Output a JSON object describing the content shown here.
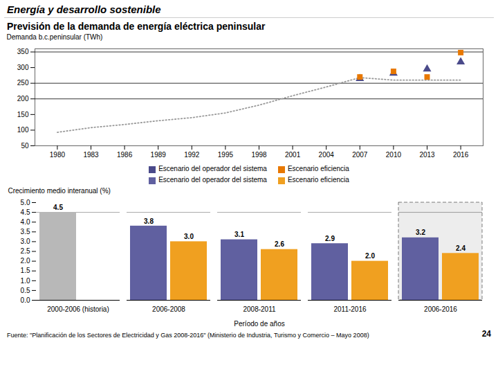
{
  "title": "Previsión de la demanda de energía eléctrica peninsular",
  "subtitle": "Energía y desarrollo sostenible",
  "annotations": [
    "Fuente: \"Planificación de los Sectores de Electricidad y Gas 2008-2016\" (Ministerio de Industria, Turismo y Comercio – Mayo 2008)",
    "24"
  ],
  "chart_data": [
    {
      "type": "scatter",
      "ylabel": "Demanda b.c.peninsular (TWh)",
      "x": [
        1980,
        1983,
        1986,
        1989,
        1992,
        1995,
        1998,
        2001,
        2004,
        2007,
        2010,
        2013,
        2016
      ],
      "xlim": [
        1978,
        2018
      ],
      "xticks": [
        1980,
        1983,
        1986,
        1989,
        1992,
        1995,
        1998,
        2001,
        2004,
        2007,
        2010,
        2013,
        2016
      ],
      "ylim": [
        50,
        360
      ],
      "yticks": [
        50,
        100,
        150,
        200,
        250,
        300,
        350
      ],
      "grid": false,
      "legend": "bottom",
      "reference_lines": [
        350,
        250,
        200
      ],
      "series": [
        {
          "type": "line",
          "line_style": "dotted",
          "color": "#999999",
          "values": [
            93,
            108,
            118,
            130,
            140,
            155,
            180,
            210,
            238,
            268,
            260,
            260,
            260
          ]
        },
        {
          "name": "Escenario del operador del sistema",
          "type": "scatter",
          "marker": "triangle",
          "color": "#4a4a8a",
          "values": [
            null,
            null,
            null,
            null,
            null,
            null,
            null,
            null,
            null,
            265,
            282,
            295,
            318
          ]
        },
        {
          "name": "Escenario eficiencia",
          "type": "scatter",
          "marker": "square",
          "color": "#e87800",
          "values": [
            null,
            null,
            null,
            null,
            null,
            null,
            null,
            null,
            null,
            270,
            288,
            270,
            348
          ]
        }
      ]
    },
    {
      "type": "bar",
      "categories": [
        "2000-2006 (historia)",
        "2006-2008",
        "2008-2011",
        "2011-2016",
        "2006-2016"
      ],
      "xlabel": "Período de años",
      "ylabel": "Crecimiento medio interanual (%)",
      "ylim": [
        0,
        5.0
      ],
      "yticks": [
        {
          "value": 0,
          "label": "0.0"
        },
        0.5,
        {
          "value": 1,
          "label": "1.0"
        },
        1.5,
        {
          "value": 2,
          "label": "2.0"
        },
        2.5,
        {
          "value": 3,
          "label": "3.0"
        },
        3.5,
        {
          "value": 4,
          "label": "4.0"
        },
        4.5,
        {
          "value": 5,
          "label": "5.0"
        }
      ],
      "grid": false,
      "legend": "top",
      "data_labels": true,
      "reference_lines": [
        4.5
      ],
      "highlight": "2006-2016",
      "series": [
        {
          "name": "Escenario del operador del sistema",
          "color": "#6060a0",
          "colors": [
            "#b8b8b8",
            "#6060a0",
            "#6060a0",
            "#6060a0",
            "#6060a0"
          ],
          "values": [
            4.5,
            3.8,
            3.1,
            2.9,
            3.2
          ],
          "value_labels": [
            "4.5",
            "3.8",
            "3.1",
            "2.9",
            "3.2"
          ]
        },
        {
          "name": "Escenario eficiencia",
          "color": "#f0a020",
          "values": [
            null,
            3.0,
            2.6,
            2.0,
            2.4
          ],
          "value_labels": [
            null,
            "3.0",
            "2.6",
            "2.0",
            "2.4"
          ]
        }
      ]
    }
  ]
}
